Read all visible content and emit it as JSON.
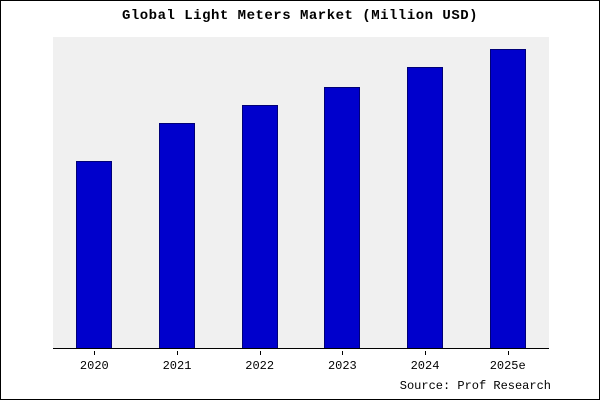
{
  "source": "Source: Prof Research",
  "chart_data": {
    "type": "bar",
    "title": "Global Light Meters Market (Million USD)",
    "categories": [
      "2020",
      "2021",
      "2022",
      "2023",
      "2024",
      "2025e"
    ],
    "values": [
      63,
      76,
      82,
      88,
      95,
      101
    ],
    "xlabel": "",
    "ylabel": "",
    "ylim": [
      0,
      105
    ],
    "bar_color": "#0000cc",
    "bar_edge_color": "#000077",
    "plot_bg": "#f0f0f0",
    "grid": false,
    "legend": "none"
  }
}
